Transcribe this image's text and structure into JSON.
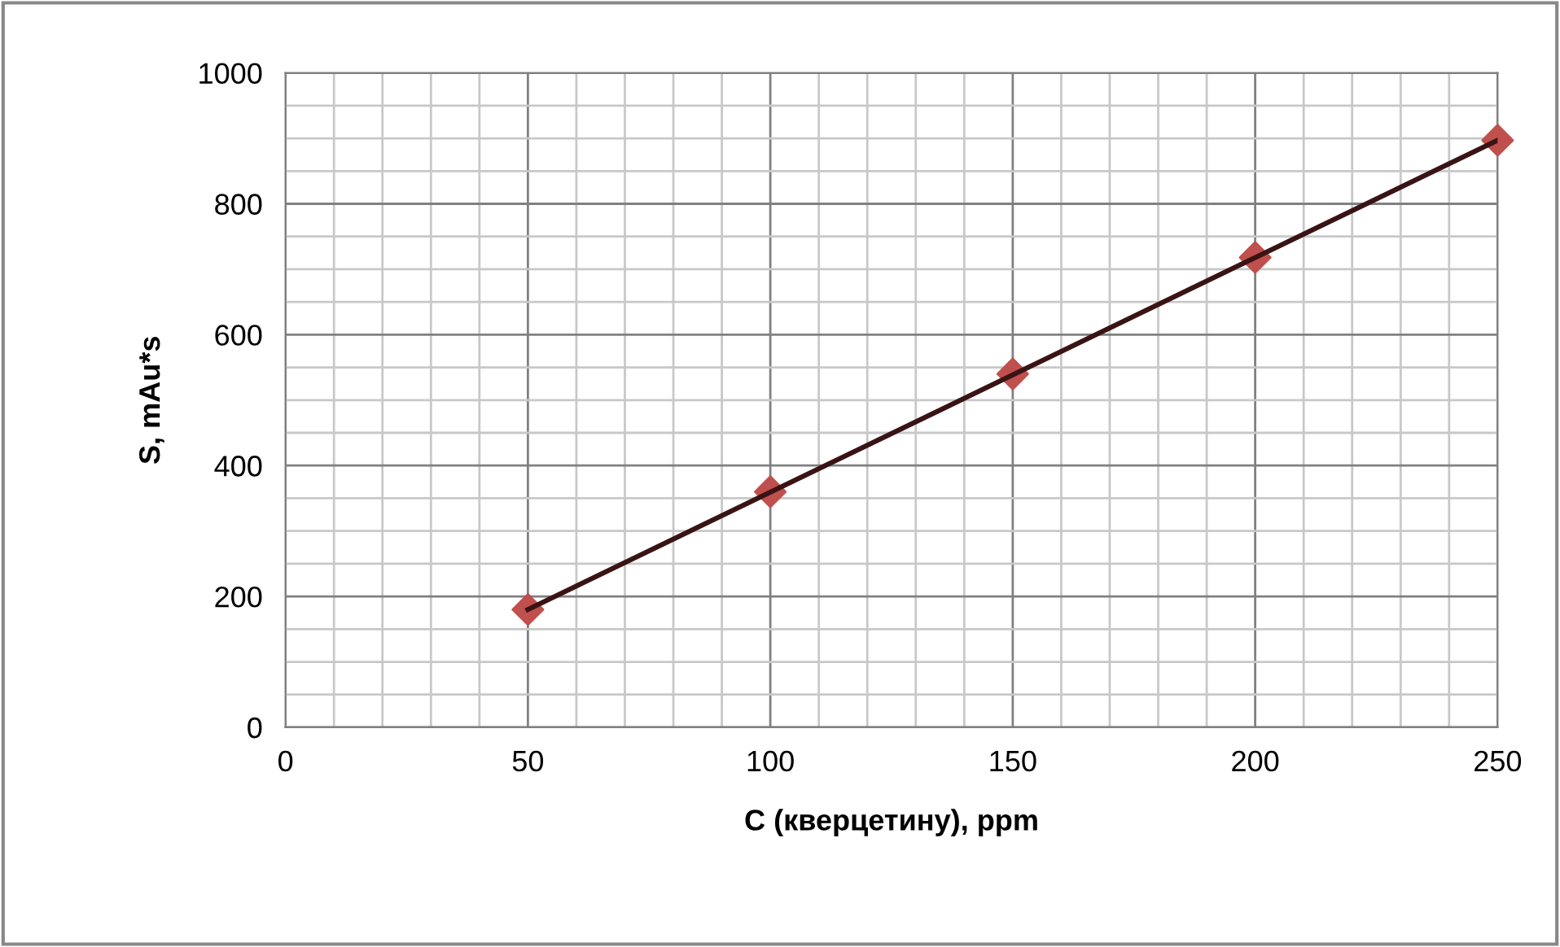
{
  "chart_data": {
    "type": "scatter",
    "xlabel": "C (кверцетину), ppm",
    "ylabel": "S, mAu*s",
    "xlim": [
      0,
      250
    ],
    "ylim": [
      0,
      1000
    ],
    "xticks": [
      0,
      {
        "value": 10,
        "label": null
      },
      {
        "value": 20,
        "label": null
      },
      {
        "value": 30,
        "label": null
      },
      {
        "value": 40,
        "label": null
      },
      50,
      {
        "value": 60,
        "label": null
      },
      {
        "value": 70,
        "label": null
      },
      {
        "value": 80,
        "label": null
      },
      {
        "value": 90,
        "label": null
      },
      100,
      {
        "value": 110,
        "label": null
      },
      {
        "value": 120,
        "label": null
      },
      {
        "value": 130,
        "label": null
      },
      {
        "value": 140,
        "label": null
      },
      150,
      {
        "value": 160,
        "label": null
      },
      {
        "value": 170,
        "label": null
      },
      {
        "value": 180,
        "label": null
      },
      {
        "value": 190,
        "label": null
      },
      200,
      {
        "value": 210,
        "label": null
      },
      {
        "value": 220,
        "label": null
      },
      {
        "value": 230,
        "label": null
      },
      {
        "value": 240,
        "label": null
      },
      250
    ],
    "yticks": [
      0,
      {
        "value": 50,
        "label": null
      },
      {
        "value": 100,
        "label": null
      },
      {
        "value": 150,
        "label": null
      },
      200,
      {
        "value": 250,
        "label": null
      },
      {
        "value": 300,
        "label": null
      },
      {
        "value": 350,
        "label": null
      },
      400,
      {
        "value": 450,
        "label": null
      },
      {
        "value": 500,
        "label": null
      },
      {
        "value": 550,
        "label": null
      },
      600,
      {
        "value": 650,
        "label": null
      },
      {
        "value": 700,
        "label": null
      },
      {
        "value": 750,
        "label": null
      },
      800,
      {
        "value": 850,
        "label": null
      },
      {
        "value": 900,
        "label": null
      },
      {
        "value": 950,
        "label": null
      },
      1000
    ],
    "grid": true,
    "legend": false,
    "series": [
      {
        "color": "#c0504d",
        "marker": "diamond",
        "x": [
          50,
          100,
          150,
          200,
          250
        ],
        "values": [
          180,
          360,
          540,
          718,
          897
        ]
      },
      {
        "type": "line",
        "color": "#3a1414",
        "marker": "none",
        "line_style": "solid",
        "x": [
          50,
          250
        ],
        "values": [
          180,
          897
        ]
      }
    ]
  }
}
